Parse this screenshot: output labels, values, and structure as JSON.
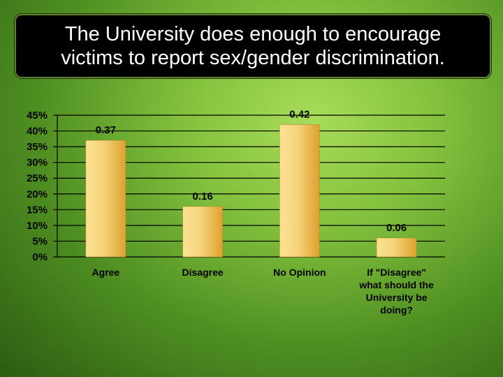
{
  "title": "The University does enough to encourage\nvictims to report sex/gender discrimination.",
  "chart_data": {
    "type": "bar",
    "categories": [
      "Agree",
      "Disagree",
      "No Opinion",
      "If \"Disagree\" what should the University be doing?"
    ],
    "values": [
      0.37,
      0.16,
      0.42,
      0.06
    ],
    "data_labels": [
      "0.37",
      "0.16",
      "0.42",
      "0.06"
    ],
    "ylim": [
      0,
      0.45
    ],
    "yticks": [
      "0%",
      "5%",
      "10%",
      "15%",
      "20%",
      "25%",
      "30%",
      "35%",
      "40%",
      "45%"
    ],
    "grid": true,
    "legend": "none",
    "colors": {
      "bar_light": "#fde9a3",
      "bar_dark": "#e0a830",
      "grid": "#000000"
    }
  }
}
